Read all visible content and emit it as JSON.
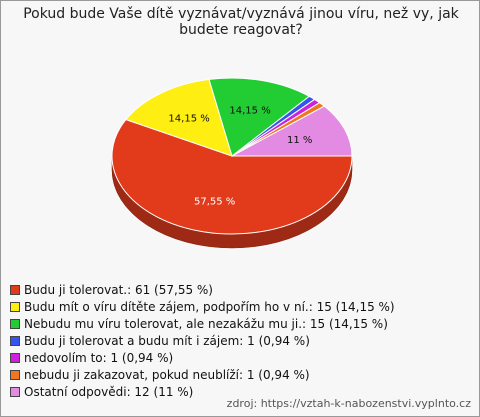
{
  "chart_data": {
    "type": "pie",
    "title": "Pokud bude Vaše dítě vyznávat/vyznává jinou víru, než vy, jak budete reagovat?",
    "categories": [
      "Budu ji tolerovat.: 61 (57,55 %)",
      "Budu mít o víru dítěte zájem, podpořím ho v ní.: 15 (14,15 %)",
      "Nebudu mu víru tolerovat, ale nezakážu mu ji.: 15 (14,15 %)",
      "Budu ji tolerovat a budu mít i zájem: 1 (0,94 %)",
      "nedovolím to: 1 (0,94 %)",
      "nebudu ji zakazovat, pokud neublíží: 1 (0,94 %)",
      "Ostatní odpovědi: 12 (11 %)"
    ],
    "values": [
      57.55,
      14.15,
      14.15,
      0.94,
      0.94,
      0.94,
      11
    ],
    "value_labels": [
      "57,55 %",
      "14,15 %",
      "14,15 %",
      null,
      null,
      null,
      "11 %"
    ],
    "colors": [
      "#e23b1c",
      "#ffee11",
      "#22cc33",
      "#3355ee",
      "#cc22dd",
      "#ee7722",
      "#e38ae3"
    ],
    "source": "zdroj: https://vztah-k-nabozenstvi.vyplnto.cz"
  }
}
